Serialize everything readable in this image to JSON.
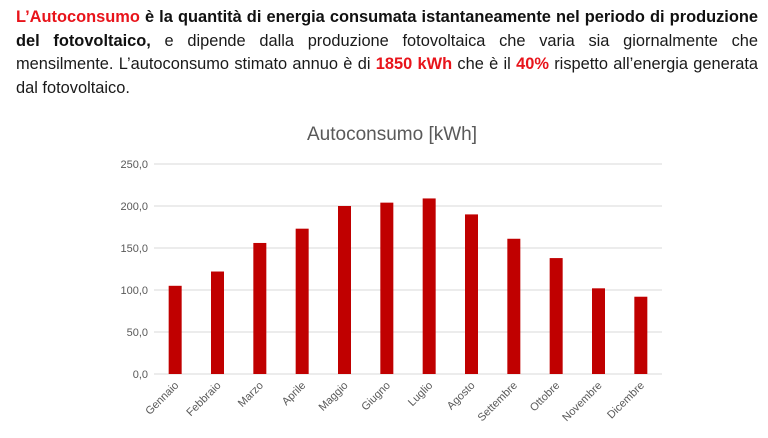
{
  "intro": {
    "s1": "L’Autoconsumo",
    "s2": " è la quantità di energia consumata istantaneamente nel periodo di produzione del fotovoltaico,",
    "s3": " e dipende dalla produzione fotovoltaica che varia sia giornalmente che mensilmente. L’autoconsumo stimato annuo è di ",
    "s4": "1850 kWh",
    "s5": " che è il ",
    "s6": "40%",
    "s7": " rispetto all’energia generata dal fotovoltaico."
  },
  "colors": {
    "accent_red": "#e8141b",
    "bar": "#c00000",
    "grid": "#d9d9d9"
  },
  "chart_data": {
    "type": "bar",
    "title": "Autoconsumo [kWh]",
    "categories": [
      "Gennaio",
      "Febbraio",
      "Marzo",
      "Aprile",
      "Maggio",
      "Giugno",
      "Luglio",
      "Agosto",
      "Settembre",
      "Ottobre",
      "Novembre",
      "Dicembre"
    ],
    "values": [
      105,
      122,
      156,
      173,
      200,
      204,
      209,
      190,
      161,
      138,
      102,
      92
    ],
    "ylim": [
      0,
      250
    ],
    "yticks": [
      "0,0",
      "50,0",
      "100,0",
      "150,0",
      "200,0",
      "250,0"
    ],
    "grid": true,
    "legend": "none"
  }
}
